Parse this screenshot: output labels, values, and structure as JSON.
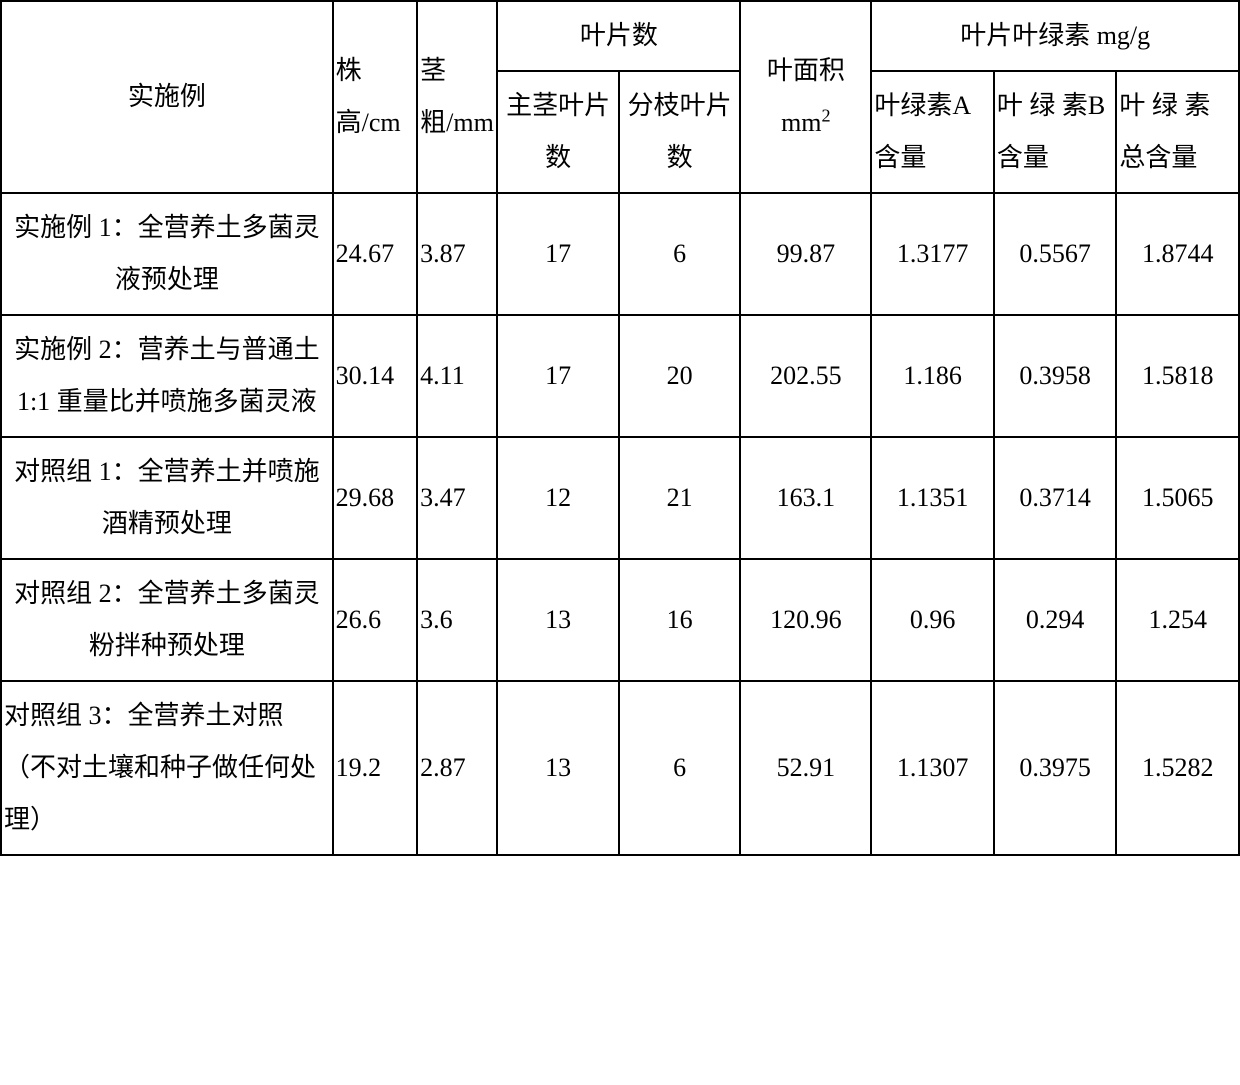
{
  "table": {
    "type": "table",
    "border_color": "#000000",
    "background_color": "#ffffff",
    "text_color": "#000000",
    "font_size": 26,
    "headers": {
      "example": "实施例",
      "plant_height": "株高/cm",
      "stem_diameter": "茎粗/mm",
      "leaf_count_group": "叶片数",
      "main_stem_leaves": "主茎叶片数",
      "branch_leaves": "分枝叶片数",
      "leaf_area": "叶面积mm",
      "leaf_area_sup": "2",
      "chlorophyll_group": "叶片叶绿素 mg/g",
      "chlorophyll_a": "叶绿素A 含量",
      "chlorophyll_b": "叶 绿 素B 含量",
      "chlorophyll_total": "叶 绿 素总含量"
    },
    "column_widths": {
      "example": 314,
      "plant_height": 80,
      "stem_diameter": 76,
      "main_stem_leaves": 115,
      "branch_leaves": 115,
      "leaf_area": 124,
      "chlorophyll_a": 116,
      "chlorophyll_b": 116,
      "chlorophyll_total": 116
    },
    "rows": [
      {
        "example": "实施例 1：全营养土多菌灵液预处理",
        "plant_height": "24.67",
        "stem_diameter": "3.87",
        "main_stem_leaves": "17",
        "branch_leaves": "6",
        "leaf_area": "99.87",
        "chlorophyll_a": "1.3177",
        "chlorophyll_b": "0.5567",
        "chlorophyll_total": "1.8744"
      },
      {
        "example": "实施例 2：营养土与普通土 1:1 重量比并喷施多菌灵液",
        "plant_height": "30.14",
        "stem_diameter": "4.11",
        "main_stem_leaves": "17",
        "branch_leaves": "20",
        "leaf_area": "202.55",
        "chlorophyll_a": "1.186",
        "chlorophyll_b": "0.3958",
        "chlorophyll_total": "1.5818"
      },
      {
        "example": "对照组 1：全营养土并喷施酒精预处理",
        "plant_height": "29.68",
        "stem_diameter": "3.47",
        "main_stem_leaves": "12",
        "branch_leaves": "21",
        "leaf_area": "163.1",
        "chlorophyll_a": "1.1351",
        "chlorophyll_b": "0.3714",
        "chlorophyll_total": "1.5065"
      },
      {
        "example": "对照组 2：全营养土多菌灵粉拌种预处理",
        "plant_height": "26.6",
        "stem_diameter": "3.6",
        "main_stem_leaves": "13",
        "branch_leaves": "16",
        "leaf_area": "120.96",
        "chlorophyll_a": "0.96",
        "chlorophyll_b": "0.294",
        "chlorophyll_total": "1.254"
      },
      {
        "example": "对照组 3：全营养土对照（不对土壤和种子做任何处理）",
        "plant_height": "19.2",
        "stem_diameter": "2.87",
        "main_stem_leaves": "13",
        "branch_leaves": "6",
        "leaf_area": "52.91",
        "chlorophyll_a": "1.1307",
        "chlorophyll_b": "0.3975",
        "chlorophyll_total": "1.5282"
      }
    ]
  }
}
